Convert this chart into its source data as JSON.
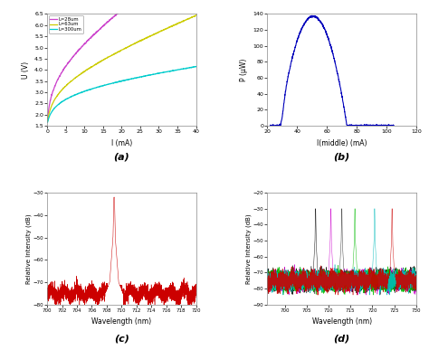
{
  "fig_width": 4.74,
  "fig_height": 3.87,
  "dpi": 100,
  "bg_color": "#ffffff",
  "subplot_labels": [
    "(a)",
    "(b)",
    "(c)",
    "(d)"
  ],
  "plot_a": {
    "xlabel": "I (mA)",
    "ylabel": "U (V)",
    "xlim": [
      0,
      40
    ],
    "ylim": [
      1.5,
      6.5
    ],
    "xticks": [
      0,
      5,
      10,
      15,
      20,
      25,
      30,
      35,
      40
    ],
    "yticks": [
      1.5,
      2,
      2.5,
      3,
      3.5,
      4,
      4.5,
      5,
      5.5,
      6,
      6.5
    ],
    "legend": [
      "L=28um",
      "L=63um",
      "L=300um"
    ],
    "colors": [
      "#cc44cc",
      "#cccc00",
      "#00cccc"
    ]
  },
  "plot_b": {
    "xlabel": "I(middle) (mA)",
    "ylabel": "P (μW)",
    "xlim": [
      20,
      120
    ],
    "ylim": [
      0,
      140
    ],
    "xticks": [
      20,
      40,
      60,
      80,
      100,
      120
    ],
    "yticks": [
      0,
      20,
      40,
      60,
      80,
      100,
      120,
      140
    ],
    "color": "#0000bb"
  },
  "plot_c": {
    "xlabel": "Wavelength (nm)",
    "ylabel": "Relative Intensity (dB)",
    "xlim": [
      700,
      720
    ],
    "ylim": [
      -80,
      -30
    ],
    "xticks": [
      700,
      702,
      704,
      706,
      708,
      710,
      712,
      714,
      716,
      718,
      720
    ],
    "yticks": [
      -80,
      -70,
      -60,
      -50,
      -40,
      -30
    ],
    "color": "#cc0000",
    "peak_wl": 709.0,
    "peak_db": -32,
    "noise_floor": -75
  },
  "plot_d": {
    "xlabel": "Wavelength (nm)",
    "ylabel": "Relative Intensity (dB)",
    "xlim": [
      696,
      730
    ],
    "ylim": [
      -90,
      -20
    ],
    "xticks": [
      700,
      705,
      710,
      715,
      720,
      725,
      730
    ],
    "yticks": [
      -90,
      -80,
      -70,
      -60,
      -50,
      -40,
      -30,
      -20
    ],
    "peak_configs": [
      [
        707.0,
        "#000000",
        -30
      ],
      [
        710.5,
        "#cc00cc",
        -30
      ],
      [
        713.0,
        "#333333",
        -30
      ],
      [
        716.0,
        "#00bb00",
        -30
      ],
      [
        720.5,
        "#00bbbb",
        -30
      ],
      [
        724.5,
        "#cc0000",
        -30
      ]
    ]
  }
}
